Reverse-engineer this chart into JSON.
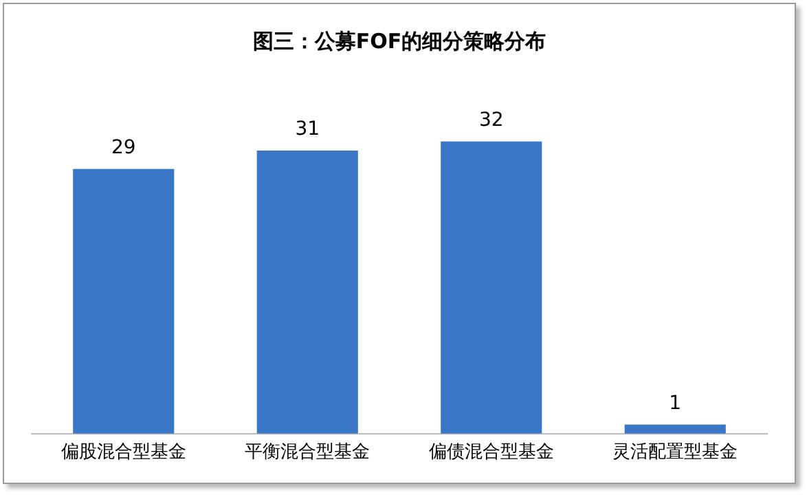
{
  "chart_data": {
    "type": "bar",
    "title": "图三：公募FOF的细分策略分布",
    "categories": [
      "偏股混合型基金",
      "平衡混合型基金",
      "偏债混合型基金",
      "灵活配置型基金"
    ],
    "values": [
      29,
      31,
      32,
      1
    ],
    "color": "#3a77c6",
    "data_labels": true,
    "grid": false,
    "legend": false
  }
}
